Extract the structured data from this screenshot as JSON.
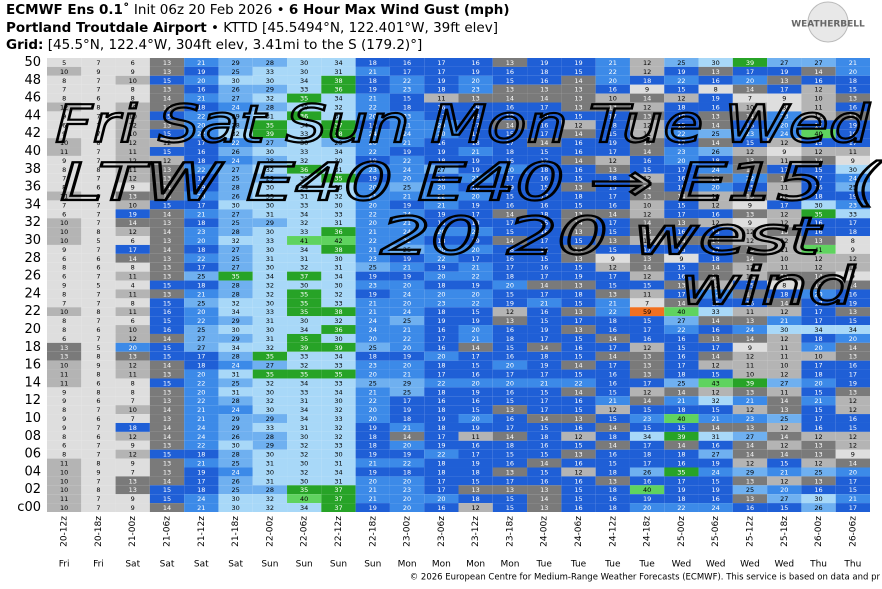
{
  "header": {
    "line1": [
      "ECMWF Ens 0.1˚",
      " Init 06z 20 Feb 2026 • ",
      "6 Hour Max Wind Gust (mph)"
    ],
    "line2": [
      "Portland Troutdale Airport",
      " • KTTD [45.5494°N, 122.401°W, 39ft elev]"
    ],
    "line3": [
      "Grid:",
      " [45.5°N, 122.4°W, 304ft elev, 3.41mi to the S (179.2)°]"
    ]
  },
  "logo": "WEATHERBELL",
  "footer": "© 2026 European Centre for Medium-Range Weather Forecasts (ECMWF). This service is based on data and pr",
  "annotations": [
    "Fri Sat Sun Mon Tue Wed",
    "LTW E40 E40 → E15 (",
    "20   20   west",
    "wind"
  ],
  "chart_data": {
    "type": "heatmap",
    "x": [
      "20-12z",
      "20-18z",
      "21-00z",
      "21-06z",
      "21-12z",
      "21-18z",
      "22-00z",
      "22-06z",
      "22-12z",
      "22-18z",
      "23-00z",
      "23-06z",
      "23-12z",
      "23-18z",
      "24-00z",
      "24-06z",
      "24-12z",
      "24-18z",
      "25-00z",
      "25-06z",
      "25-12z",
      "25-18z",
      "26-00z",
      "26-06z"
    ],
    "days": [
      "Fri",
      "Fri",
      "Sat",
      "Sat",
      "Sat",
      "Sat",
      "Sun",
      "Sun",
      "Sun",
      "Sun",
      "Mon",
      "Mon",
      "Mon",
      "Mon",
      "Tue",
      "Tue",
      "Tue",
      "Tue",
      "Wed",
      "Wed",
      "Wed",
      "Wed",
      "Thu",
      "Thu"
    ],
    "y": [
      "50",
      null,
      "48",
      null,
      "46",
      null,
      "44",
      null,
      "42",
      null,
      "40",
      null,
      "38",
      null,
      "36",
      null,
      "34",
      null,
      "32",
      null,
      "30",
      null,
      "28",
      null,
      "26",
      null,
      "24",
      null,
      "22",
      null,
      "20",
      null,
      "18",
      null,
      "16",
      null,
      "14",
      null,
      "12",
      null,
      "10",
      null,
      "08",
      null,
      "06",
      null,
      "04",
      null,
      "02",
      null,
      "c00"
    ],
    "values": [
      [
        5,
        7,
        6,
        13,
        21,
        29,
        28,
        30,
        34,
        18,
        16,
        17,
        16,
        13,
        19,
        19,
        21,
        12,
        25,
        30,
        39,
        27,
        27,
        21
      ],
      [
        10,
        9,
        9,
        13,
        19,
        25,
        33,
        30,
        31,
        21,
        17,
        17,
        19,
        16,
        18,
        15,
        22,
        12,
        19,
        13,
        17,
        19,
        14,
        20
      ],
      [
        8,
        7,
        10,
        15,
        20,
        30,
        30,
        34,
        38,
        18,
        22,
        19,
        20,
        15,
        16,
        14,
        20,
        18,
        22,
        16,
        20,
        13,
        16,
        18
      ],
      [
        7,
        7,
        8,
        13,
        16,
        26,
        29,
        33,
        36,
        19,
        23,
        18,
        23,
        13,
        13,
        13,
        16,
        9,
        15,
        8,
        14,
        17,
        12,
        15
      ],
      [
        8,
        6,
        8,
        14,
        21,
        27,
        32,
        35,
        34,
        21,
        15,
        11,
        13,
        14,
        14,
        13,
        10,
        14,
        12,
        19,
        7,
        9,
        10,
        13
      ],
      [
        12,
        8,
        10,
        14,
        18,
        24,
        28,
        30,
        32,
        22,
        18,
        16,
        19,
        16,
        17,
        13,
        13,
        12,
        18,
        16,
        10,
        8,
        11,
        16
      ],
      [
        9,
        7,
        10,
        15,
        22,
        29,
        31,
        36,
        33,
        20,
        23,
        17,
        18,
        18,
        19,
        15,
        17,
        13,
        19,
        13,
        14,
        23,
        12,
        14
      ],
      [
        6,
        7,
        12,
        13,
        20,
        28,
        35,
        34,
        37,
        19,
        21,
        20,
        17,
        14,
        16,
        12,
        18,
        12,
        15,
        14,
        16,
        20,
        17,
        19
      ],
      [
        9,
        7,
        10,
        15,
        22,
        32,
        39,
        33,
        38,
        24,
        24,
        20,
        19,
        15,
        17,
        14,
        15,
        11,
        22,
        25,
        23,
        24,
        40,
        19
      ],
      [
        10,
        8,
        12,
        12,
        17,
        22,
        27,
        30,
        29,
        20,
        21,
        16,
        18,
        17,
        14,
        16,
        19,
        13,
        17,
        14,
        15,
        12,
        15,
        17
      ],
      [
        11,
        7,
        11,
        15,
        16,
        26,
        30,
        33,
        34,
        22,
        19,
        19,
        21,
        18,
        15,
        16,
        17,
        14,
        23,
        26,
        12,
        9,
        12,
        11
      ],
      [
        9,
        7,
        12,
        12,
        18,
        24,
        28,
        32,
        30,
        18,
        22,
        18,
        19,
        16,
        17,
        14,
        12,
        16,
        20,
        18,
        13,
        11,
        14,
        9
      ],
      [
        8,
        8,
        11,
        13,
        22,
        27,
        32,
        36,
        31,
        23,
        24,
        27,
        19,
        20,
        18,
        16,
        13,
        15,
        17,
        24,
        14,
        17,
        15,
        30
      ],
      [
        7,
        7,
        12,
        13,
        16,
        25,
        29,
        30,
        35,
        19,
        20,
        18,
        21,
        17,
        16,
        15,
        18,
        12,
        16,
        14,
        22,
        13,
        17,
        24
      ],
      [
        8,
        6,
        9,
        14,
        19,
        28,
        30,
        34,
        33,
        20,
        25,
        20,
        18,
        19,
        15,
        13,
        15,
        14,
        19,
        20,
        15,
        11,
        16,
        25
      ],
      [
        11,
        9,
        13,
        13,
        20,
        26,
        33,
        31,
        32,
        21,
        21,
        22,
        20,
        15,
        17,
        18,
        17,
        13,
        14,
        11,
        13,
        12,
        18,
        19
      ],
      [
        7,
        7,
        10,
        15,
        17,
        30,
        30,
        33,
        30,
        20,
        19,
        21,
        19,
        16,
        16,
        15,
        16,
        10,
        15,
        12,
        9,
        17,
        30,
        23
      ],
      [
        6,
        7,
        19,
        14,
        21,
        27,
        31,
        34,
        33,
        22,
        24,
        19,
        17,
        14,
        18,
        13,
        14,
        12,
        17,
        16,
        13,
        12,
        35,
        33
      ],
      [
        10,
        7,
        14,
        13,
        18,
        25,
        29,
        32,
        31,
        20,
        21,
        16,
        18,
        17,
        15,
        14,
        17,
        14,
        13,
        12,
        9,
        12,
        16,
        17
      ],
      [
        10,
        8,
        12,
        14,
        23,
        28,
        30,
        33,
        36,
        21,
        24,
        20,
        22,
        15,
        16,
        13,
        15,
        13,
        16,
        15,
        12,
        13,
        16,
        18
      ],
      [
        10,
        5,
        6,
        13,
        20,
        32,
        33,
        41,
        42,
        22,
        22,
        18,
        19,
        14,
        17,
        15,
        13,
        12,
        14,
        14,
        12,
        12,
        13,
        8
      ],
      [
        9,
        7,
        17,
        14,
        18,
        27,
        30,
        34,
        38,
        21,
        25,
        20,
        20,
        18,
        16,
        14,
        15,
        17,
        16,
        17,
        13,
        11,
        41,
        9
      ],
      [
        6,
        6,
        14,
        13,
        22,
        25,
        31,
        31,
        30,
        23,
        19,
        22,
        17,
        16,
        15,
        13,
        9,
        13,
        9,
        18,
        14,
        10,
        12,
        12
      ],
      [
        8,
        6,
        8,
        13,
        17,
        27,
        30,
        32,
        31,
        25,
        21,
        19,
        21,
        17,
        16,
        15,
        12,
        14,
        15,
        14,
        12,
        11,
        12,
        10
      ],
      [
        6,
        7,
        11,
        13,
        25,
        35,
        34,
        37,
        34,
        19,
        19,
        20,
        22,
        18,
        17,
        19,
        17,
        12,
        16,
        14,
        11,
        13,
        14,
        9
      ],
      [
        9,
        5,
        4,
        15,
        18,
        28,
        32,
        30,
        30,
        23,
        20,
        18,
        19,
        20,
        14,
        13,
        15,
        15,
        13,
        12,
        15,
        8,
        13,
        14
      ],
      [
        8,
        7,
        11,
        13,
        21,
        28,
        32,
        35,
        32,
        19,
        24,
        20,
        20,
        15,
        17,
        18,
        13,
        11,
        17,
        22,
        14,
        18,
        20,
        16
      ],
      [
        7,
        7,
        8,
        15,
        25,
        32,
        30,
        35,
        33,
        21,
        20,
        23,
        22,
        19,
        21,
        15,
        21,
        7,
        14,
        15,
        16,
        14,
        17,
        19
      ],
      [
        10,
        8,
        11,
        16,
        20,
        34,
        33,
        35,
        38,
        21,
        24,
        18,
        15,
        12,
        16,
        13,
        22,
        59,
        40,
        33,
        11,
        12,
        17,
        13
      ],
      [
        8,
        7,
        6,
        15,
        22,
        29,
        31,
        30,
        32,
        24,
        25,
        19,
        19,
        13,
        15,
        17,
        18,
        15,
        27,
        14,
        13,
        21,
        17,
        15
      ],
      [
        8,
        6,
        10,
        16,
        25,
        30,
        30,
        34,
        36,
        24,
        21,
        16,
        20,
        16,
        19,
        13,
        16,
        17,
        22,
        16,
        24,
        30,
        34,
        34
      ],
      [
        6,
        7,
        12,
        14,
        27,
        29,
        31,
        35,
        30,
        20,
        22,
        17,
        21,
        18,
        17,
        15,
        14,
        16,
        16,
        13,
        14,
        12,
        18,
        20
      ],
      [
        13,
        5,
        20,
        15,
        27,
        34,
        32,
        39,
        39,
        25,
        20,
        16,
        14,
        15,
        14,
        16,
        17,
        12,
        15,
        17,
        9,
        11,
        20,
        14
      ],
      [
        13,
        8,
        13,
        15,
        17,
        28,
        35,
        33,
        34,
        18,
        19,
        20,
        17,
        16,
        18,
        15,
        14,
        13,
        16,
        14,
        12,
        11,
        10,
        13
      ],
      [
        10,
        9,
        12,
        14,
        18,
        24,
        27,
        32,
        33,
        23,
        20,
        18,
        15,
        20,
        19,
        14,
        17,
        13,
        17,
        12,
        11,
        10,
        17,
        16
      ],
      [
        11,
        8,
        11,
        13,
        20,
        31,
        35,
        35,
        35,
        20,
        21,
        17,
        16,
        17,
        17,
        15,
        16,
        13,
        18,
        15,
        10,
        12,
        18,
        17
      ],
      [
        11,
        6,
        8,
        15,
        22,
        25,
        32,
        34,
        33,
        25,
        29,
        22,
        20,
        20,
        21,
        22,
        16,
        17,
        25,
        43,
        39,
        27,
        20,
        19
      ],
      [
        9,
        8,
        8,
        13,
        20,
        31,
        30,
        33,
        34,
        21,
        25,
        18,
        19,
        16,
        15,
        14,
        15,
        12,
        14,
        12,
        13,
        11,
        15,
        13
      ],
      [
        9,
        6,
        7,
        13,
        22,
        28,
        32,
        31,
        30,
        22,
        17,
        16,
        16,
        15,
        17,
        16,
        21,
        14,
        21,
        32,
        21,
        14,
        21,
        12
      ],
      [
        8,
        7,
        10,
        14,
        21,
        24,
        30,
        34,
        32,
        20,
        19,
        18,
        15,
        13,
        17,
        15,
        12,
        15,
        18,
        15,
        12,
        13,
        15,
        12
      ],
      [
        9,
        6,
        7,
        13,
        21,
        29,
        29,
        34,
        33,
        20,
        18,
        19,
        20,
        16,
        14,
        13,
        15,
        23,
        40,
        21,
        23,
        25,
        17,
        16
      ],
      [
        9,
        7,
        18,
        14,
        24,
        29,
        33,
        31,
        32,
        19,
        21,
        18,
        19,
        17,
        15,
        16,
        14,
        15,
        15,
        14,
        13,
        12,
        16,
        15
      ],
      [
        8,
        6,
        12,
        14,
        24,
        26,
        28,
        30,
        32,
        18,
        14,
        17,
        11,
        14,
        18,
        12,
        18,
        34,
        39,
        31,
        27,
        14,
        12,
        12
      ],
      [
        6,
        7,
        9,
        13,
        22,
        30,
        29,
        32,
        33,
        18,
        20,
        19,
        16,
        18,
        16,
        15,
        14,
        17,
        14,
        16,
        14,
        12,
        13,
        12
      ],
      [
        8,
        7,
        12,
        15,
        18,
        28,
        30,
        32,
        30,
        19,
        19,
        22,
        17,
        15,
        15,
        13,
        16,
        18,
        18,
        27,
        14,
        14,
        13,
        9
      ],
      [
        11,
        8,
        9,
        13,
        21,
        25,
        31,
        30,
        31,
        21,
        22,
        18,
        19,
        16,
        14,
        16,
        15,
        17,
        16,
        19,
        12,
        15,
        12,
        14
      ],
      [
        10,
        9,
        7,
        13,
        19,
        24,
        30,
        32,
        34,
        19,
        18,
        18,
        18,
        13,
        15,
        12,
        18,
        26,
        35,
        24,
        29,
        21,
        25,
        20
      ],
      [
        10,
        7,
        13,
        14,
        17,
        26,
        31,
        30,
        31,
        20,
        20,
        17,
        15,
        17,
        16,
        16,
        13,
        16,
        17,
        15,
        13,
        12,
        13,
        17
      ],
      [
        10,
        8,
        13,
        15,
        18,
        25,
        28,
        35,
        37,
        21,
        23,
        17,
        13,
        13,
        13,
        15,
        18,
        40,
        19,
        19,
        25,
        20,
        16,
        15
      ],
      [
        11,
        7,
        9,
        15,
        24,
        30,
        32,
        40,
        37,
        21,
        20,
        20,
        18,
        15,
        14,
        15,
        16,
        19,
        18,
        16,
        13,
        27,
        30,
        21
      ],
      [
        10,
        7,
        9,
        14,
        21,
        30,
        32,
        34,
        37,
        19,
        20,
        16,
        12,
        15,
        13,
        16,
        18,
        20,
        22,
        24,
        16,
        15,
        26,
        17
      ]
    ]
  }
}
